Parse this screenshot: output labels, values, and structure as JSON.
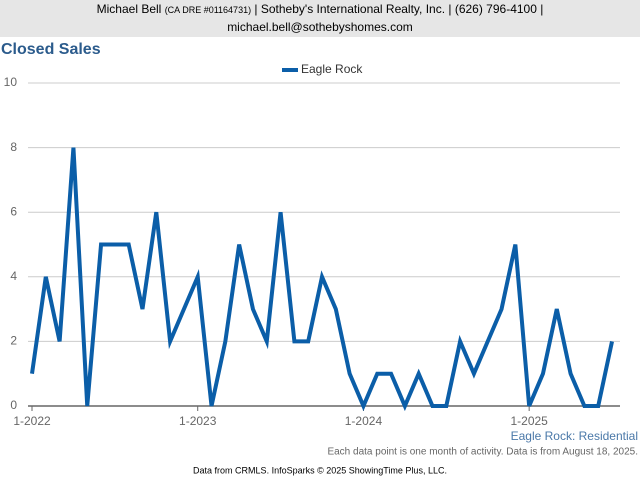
{
  "header": {
    "name": "Michael Bell",
    "license": "(CA DRE #01164731)",
    "company": "| Sotheby's International Realty, Inc. | (626) 796-4100 |",
    "email": "michael.bell@sothebyshomes.com"
  },
  "chart_data": {
    "type": "line",
    "title": "Closed Sales",
    "categories": [
      "1-2022",
      null,
      null,
      null,
      null,
      null,
      null,
      null,
      null,
      null,
      null,
      null,
      "1-2023",
      null,
      null,
      null,
      null,
      null,
      null,
      null,
      null,
      null,
      null,
      null,
      "1-2024",
      null,
      null,
      null,
      null,
      null,
      null,
      null,
      null,
      null,
      null,
      null,
      "1-2025",
      null,
      null,
      null,
      null,
      null,
      null
    ],
    "series": [
      {
        "name": "Eagle Rock",
        "color": "#0b5ea8",
        "values": [
          1,
          4,
          2,
          8,
          0,
          5,
          5,
          5,
          3,
          6,
          2,
          3,
          4,
          0,
          2,
          5,
          3,
          2,
          6,
          2,
          2,
          4,
          3,
          1,
          0,
          1,
          1,
          0,
          1,
          0,
          0,
          2,
          1,
          2,
          3,
          5,
          0,
          1,
          3,
          1,
          0,
          0,
          2
        ]
      }
    ],
    "ylim": [
      0,
      10
    ],
    "yticks": [
      0,
      2,
      4,
      6,
      8,
      10
    ],
    "grid": true,
    "legend": "top",
    "subtitle": "Eagle Rock: Residential",
    "note": "Each data point is one month of activity. Data is from August 18, 2025.",
    "source": "Data from CRMLS. InfoSparks © 2025 ShowingTime Plus, LLC."
  }
}
